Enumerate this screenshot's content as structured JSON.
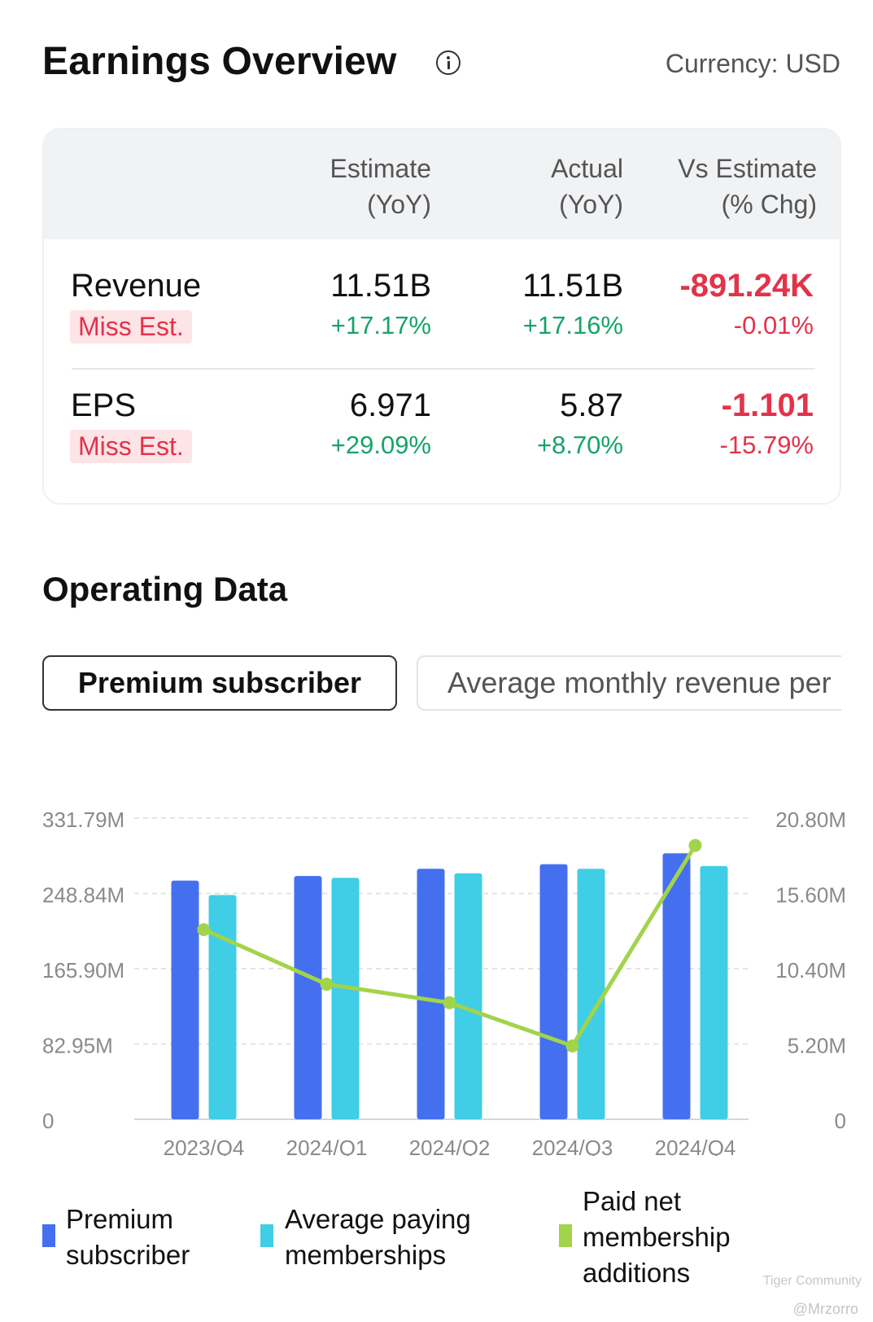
{
  "header": {
    "title": "Earnings Overview",
    "currency": "Currency: USD"
  },
  "earnings_table": {
    "columns": [
      {
        "line1": "Estimate",
        "line2": "(YoY)"
      },
      {
        "line1": "Actual",
        "line2": "(YoY)"
      },
      {
        "line1": "Vs Estimate",
        "line2": "(% Chg)"
      }
    ],
    "rows": [
      {
        "label": "Revenue",
        "badge": "Miss Est.",
        "estimate": "11.51B",
        "estimate_yoy": "+17.17%",
        "actual": "11.51B",
        "actual_yoy": "+17.16%",
        "vs_estimate": "-891.24K",
        "vs_estimate_pct": "-0.01%"
      },
      {
        "label": "EPS",
        "badge": "Miss Est.",
        "estimate": "6.971",
        "estimate_yoy": "+29.09%",
        "actual": "5.87",
        "actual_yoy": "+8.70%",
        "vs_estimate": "-1.101",
        "vs_estimate_pct": "-15.79%"
      }
    ]
  },
  "operating": {
    "title": "Operating Data",
    "tabs": [
      {
        "label": "Premium subscriber",
        "active": true
      },
      {
        "label": "Average monthly revenue per",
        "active": false
      }
    ]
  },
  "chart_data": {
    "type": "bar",
    "categories": [
      "2023/Q4",
      "2024/Q1",
      "2024/Q2",
      "2024/Q3",
      "2024/Q4"
    ],
    "left_axis_ticks": [
      "0",
      "82.95M",
      "165.90M",
      "248.84M",
      "331.79M"
    ],
    "right_axis_ticks": [
      "0",
      "5.20M",
      "10.40M",
      "15.60M",
      "20.80M"
    ],
    "ylim_left": [
      0,
      331.79
    ],
    "ylim_right": [
      0,
      20.8
    ],
    "series": [
      {
        "name": "Premium subscriber",
        "type": "bar",
        "axis": "left",
        "color": "#4470f0",
        "values": [
          263,
          268,
          276,
          281,
          293
        ]
      },
      {
        "name": "Average paying memberships",
        "type": "bar",
        "axis": "left",
        "color": "#40cde6",
        "values": [
          247,
          266,
          271,
          276,
          279
        ]
      },
      {
        "name": "Paid net membership additions",
        "type": "line",
        "axis": "right",
        "color": "#a2d44a",
        "values": [
          13.1,
          9.33,
          8.05,
          5.07,
          18.91
        ]
      }
    ],
    "grid": true,
    "legend_position": "bottom"
  },
  "watermark": {
    "brand": "Tiger Community",
    "user": "@Mrzorro"
  }
}
